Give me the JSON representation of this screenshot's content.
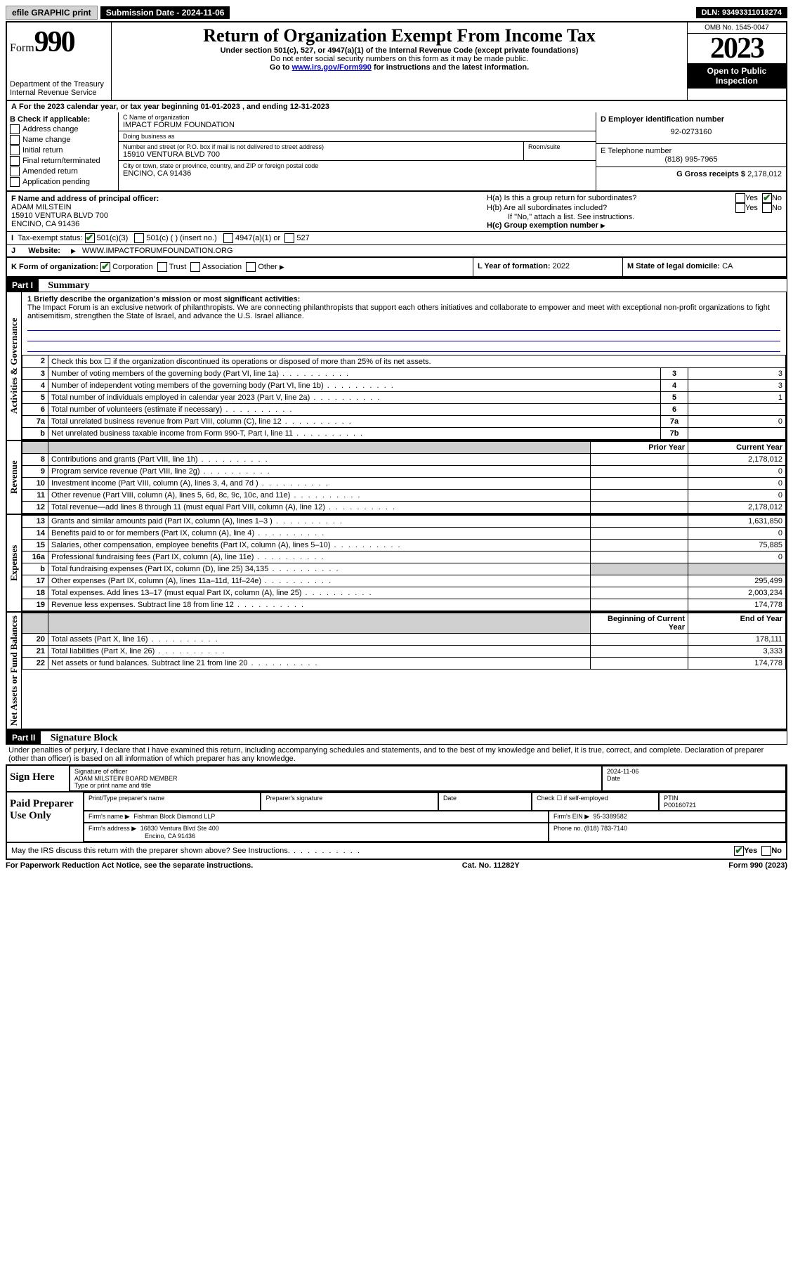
{
  "topbar": {
    "efile": "efile GRAPHIC print",
    "sub_label": "Submission Date - 2024-11-06",
    "dln": "DLN: 93493311018274"
  },
  "header": {
    "form_word": "Form",
    "form_num": "990",
    "dept": "Department of the Treasury",
    "irs": "Internal Revenue Service",
    "title": "Return of Organization Exempt From Income Tax",
    "sub1": "Under section 501(c), 527, or 4947(a)(1) of the Internal Revenue Code (except private foundations)",
    "sub2": "Do not enter social security numbers on this form as it may be made public.",
    "sub3_pre": "Go to ",
    "sub3_link": "www.irs.gov/Form990",
    "sub3_post": " for instructions and the latest information.",
    "omb": "OMB No. 1545-0047",
    "year": "2023",
    "open": "Open to Public Inspection"
  },
  "line_a": "For the 2023 calendar year, or tax year beginning 01-01-2023   , and ending 12-31-2023",
  "col_b": {
    "heading": "B Check if applicable:",
    "opts": [
      "Address change",
      "Name change",
      "Initial return",
      "Final return/terminated",
      "Amended return",
      "Application pending"
    ]
  },
  "col_c": {
    "name_label": "C Name of organization",
    "name": "IMPACT FORUM FOUNDATION",
    "dba_label": "Doing business as",
    "dba": "",
    "street_label": "Number and street (or P.O. box if mail is not delivered to street address)",
    "street": "15910 VENTURA BLVD 700",
    "room_label": "Room/suite",
    "city_label": "City or town, state or province, country, and ZIP or foreign postal code",
    "city": "ENCINO, CA  91436"
  },
  "col_d": {
    "ein_label": "D Employer identification number",
    "ein": "92-0273160",
    "phone_label": "E Telephone number",
    "phone": "(818) 995-7965",
    "gross_label": "G Gross receipts $ ",
    "gross": "2,178,012"
  },
  "row_f": {
    "label": "F Name and address of principal officer:",
    "name": "ADAM MILSTEIN",
    "addr1": "15910 VENTURA BLVD 700",
    "addr2": "ENCINO, CA  91436"
  },
  "row_h": {
    "a": "H(a)  Is this a group return for subordinates?",
    "b": "H(b)  Are all subordinates included?",
    "b_note": "If \"No,\" attach a list. See instructions.",
    "c": "H(c)  Group exemption number",
    "yes": "Yes",
    "no": "No"
  },
  "row_i": {
    "label": "Tax-exempt status:",
    "o1": "501(c)(3)",
    "o2": "501(c) (  ) (insert no.)",
    "o3": "4947(a)(1) or",
    "o4": "527"
  },
  "row_j": {
    "label": "Website:",
    "val": "WWW.IMPACTFORUMFOUNDATION.ORG"
  },
  "row_k": {
    "label": "K Form of organization:",
    "corp": "Corporation",
    "trust": "Trust",
    "assoc": "Association",
    "other": "Other"
  },
  "row_l": {
    "label": "L Year of formation: ",
    "val": "2022"
  },
  "row_m": {
    "label": "M State of legal domicile: ",
    "val": "CA"
  },
  "part1": {
    "tag": "Part I",
    "title": "Summary"
  },
  "mission": {
    "line1_label": "1  Briefly describe the organization's mission or most significant activities:",
    "text": "The Impact Forum is an exclusive network of philanthropists. We are connecting philanthropists that support each others initiatives and collaborate to empower and meet with exceptional non-profit organizations to fight antisemitism, strengthen the State of Israel, and advance the U.S. Israel alliance."
  },
  "sections": {
    "gov": "Activities & Governance",
    "rev": "Revenue",
    "exp": "Expenses",
    "net": "Net Assets or Fund Balances"
  },
  "lines_gov": [
    {
      "n": "2",
      "d": "Check this box ☐ if the organization discontinued its operations or disposed of more than 25% of its net assets.",
      "l": "",
      "v": ""
    },
    {
      "n": "3",
      "d": "Number of voting members of the governing body (Part VI, line 1a)",
      "l": "3",
      "v": "3"
    },
    {
      "n": "4",
      "d": "Number of independent voting members of the governing body (Part VI, line 1b)",
      "l": "4",
      "v": "3"
    },
    {
      "n": "5",
      "d": "Total number of individuals employed in calendar year 2023 (Part V, line 2a)",
      "l": "5",
      "v": "1"
    },
    {
      "n": "6",
      "d": "Total number of volunteers (estimate if necessary)",
      "l": "6",
      "v": ""
    },
    {
      "n": "7a",
      "d": "Total unrelated business revenue from Part VIII, column (C), line 12",
      "l": "7a",
      "v": "0"
    },
    {
      "n": "b",
      "d": "Net unrelated business taxable income from Form 990-T, Part I, line 11",
      "l": "7b",
      "v": ""
    }
  ],
  "col_headers": {
    "prior": "Prior Year",
    "current": "Current Year",
    "boy": "Beginning of Current Year",
    "eoy": "End of Year"
  },
  "lines_rev": [
    {
      "n": "8",
      "d": "Contributions and grants (Part VIII, line 1h)",
      "p": "",
      "c": "2,178,012"
    },
    {
      "n": "9",
      "d": "Program service revenue (Part VIII, line 2g)",
      "p": "",
      "c": "0"
    },
    {
      "n": "10",
      "d": "Investment income (Part VIII, column (A), lines 3, 4, and 7d )",
      "p": "",
      "c": "0"
    },
    {
      "n": "11",
      "d": "Other revenue (Part VIII, column (A), lines 5, 6d, 8c, 9c, 10c, and 11e)",
      "p": "",
      "c": "0"
    },
    {
      "n": "12",
      "d": "Total revenue—add lines 8 through 11 (must equal Part VIII, column (A), line 12)",
      "p": "",
      "c": "2,178,012"
    }
  ],
  "lines_exp": [
    {
      "n": "13",
      "d": "Grants and similar amounts paid (Part IX, column (A), lines 1–3 )",
      "p": "",
      "c": "1,631,850"
    },
    {
      "n": "14",
      "d": "Benefits paid to or for members (Part IX, column (A), line 4)",
      "p": "",
      "c": "0"
    },
    {
      "n": "15",
      "d": "Salaries, other compensation, employee benefits (Part IX, column (A), lines 5–10)",
      "p": "",
      "c": "75,885"
    },
    {
      "n": "16a",
      "d": "Professional fundraising fees (Part IX, column (A), line 11e)",
      "p": "",
      "c": "0"
    },
    {
      "n": "b",
      "d": "Total fundraising expenses (Part IX, column (D), line 25) 34,135",
      "p": "grey",
      "c": "grey"
    },
    {
      "n": "17",
      "d": "Other expenses (Part IX, column (A), lines 11a–11d, 11f–24e)",
      "p": "",
      "c": "295,499"
    },
    {
      "n": "18",
      "d": "Total expenses. Add lines 13–17 (must equal Part IX, column (A), line 25)",
      "p": "",
      "c": "2,003,234"
    },
    {
      "n": "19",
      "d": "Revenue less expenses. Subtract line 18 from line 12",
      "p": "",
      "c": "174,778"
    }
  ],
  "lines_net": [
    {
      "n": "20",
      "d": "Total assets (Part X, line 16)",
      "p": "",
      "c": "178,111"
    },
    {
      "n": "21",
      "d": "Total liabilities (Part X, line 26)",
      "p": "",
      "c": "3,333"
    },
    {
      "n": "22",
      "d": "Net assets or fund balances. Subtract line 21 from line 20",
      "p": "",
      "c": "174,778"
    }
  ],
  "part2": {
    "tag": "Part II",
    "title": "Signature Block"
  },
  "perjury": "Under penalties of perjury, I declare that I have examined this return, including accompanying schedules and statements, and to the best of my knowledge and belief, it is true, correct, and complete. Declaration of preparer (other than officer) is based on all information of which preparer has any knowledge.",
  "sign": {
    "here": "Sign Here",
    "sig_label": "Signature of officer",
    "name": "ADAM MILSTEIN  BOARD MEMBER",
    "name_label": "Type or print name and title",
    "date": "2024-11-06",
    "date_label": "Date"
  },
  "paid": {
    "label": "Paid Preparer Use Only",
    "pname_label": "Print/Type preparer's name",
    "psig_label": "Preparer's signature",
    "pdate_label": "Date",
    "self_label": "Check ☐ if self-employed",
    "ptin_label": "PTIN",
    "ptin": "P00160721",
    "firm_label": "Firm's name",
    "firm": "Fishman Block Diamond LLP",
    "fein_label": "Firm's EIN",
    "fein": "95-3389582",
    "faddr_label": "Firm's address",
    "faddr1": "16830 Ventura Blvd Ste 400",
    "faddr2": "Encino, CA  91436",
    "fphone_label": "Phone no.",
    "fphone": "(818) 783-7140"
  },
  "discuss": "May the IRS discuss this return with the preparer shown above? See Instructions.",
  "footer": {
    "left": "For Paperwork Reduction Act Notice, see the separate instructions.",
    "mid": "Cat. No. 11282Y",
    "right_pre": "Form ",
    "right_form": "990",
    "right_post": " (2023)"
  }
}
